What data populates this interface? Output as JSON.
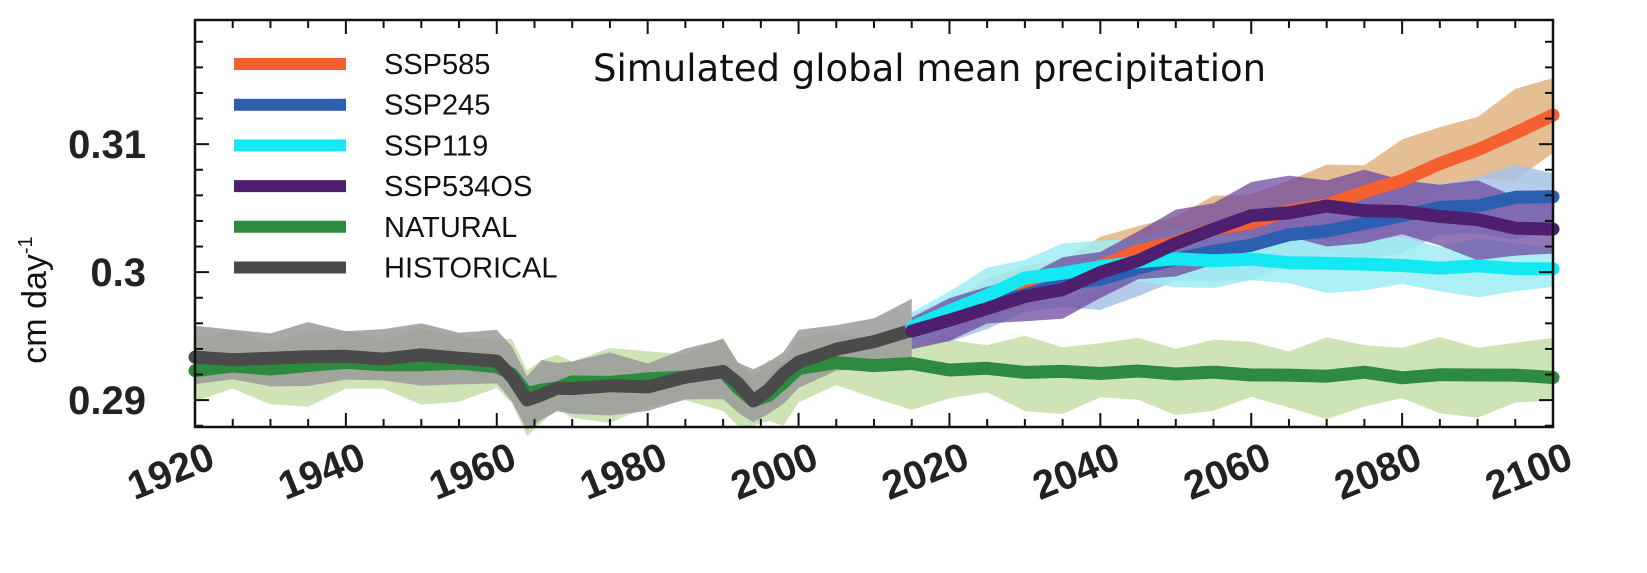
{
  "chart_data": {
    "type": "line",
    "title": "Simulated global mean precipitation",
    "ylabel": "cm day",
    "ylabel_superscript": "-1",
    "xlim": [
      1920,
      2100
    ],
    "ylim": [
      0.2879,
      0.3197
    ],
    "x_ticks": [
      1920,
      1940,
      1960,
      1980,
      2000,
      2020,
      2040,
      2060,
      2080,
      2100
    ],
    "x_tick_labels": [
      "1920",
      "1940",
      "1960",
      "1980",
      "2000",
      "2020",
      "2040",
      "2060",
      "2080",
      "2100"
    ],
    "y_ticks": [
      0.29,
      0.3,
      0.31
    ],
    "y_tick_labels": [
      "0.29",
      "0.3",
      "0.31"
    ],
    "grid": false,
    "legend_position": "top-left",
    "series": [
      {
        "name": "SSP585",
        "color": "#f4602f",
        "band_color": "#e2b380",
        "x": [
          2015,
          2020,
          2025,
          2030,
          2035,
          2040,
          2045,
          2050,
          2055,
          2060,
          2065,
          2070,
          2075,
          2080,
          2085,
          2090,
          2095,
          2100
        ],
        "y": [
          0.2955,
          0.2965,
          0.2978,
          0.2986,
          0.2995,
          0.3005,
          0.3016,
          0.3025,
          0.3032,
          0.304,
          0.3047,
          0.3053,
          0.3062,
          0.3073,
          0.3083,
          0.3097,
          0.3108,
          0.3123
        ],
        "spread": [
          0.0012,
          0.0015,
          0.0017,
          0.0018,
          0.0019,
          0.002,
          0.0021,
          0.0022,
          0.0023,
          0.0024,
          0.0025,
          0.0026,
          0.0026,
          0.0027,
          0.0027,
          0.0028,
          0.0028,
          0.0028
        ]
      },
      {
        "name": "SSP245",
        "color": "#2d5fb0",
        "band_color": "#a7c2e6",
        "x": [
          2015,
          2020,
          2025,
          2030,
          2035,
          2040,
          2045,
          2050,
          2055,
          2060,
          2065,
          2070,
          2075,
          2080,
          2085,
          2090,
          2095,
          2100
        ],
        "y": [
          0.2955,
          0.2963,
          0.2975,
          0.2983,
          0.299,
          0.2995,
          0.3003,
          0.301,
          0.3016,
          0.3022,
          0.3028,
          0.3033,
          0.3038,
          0.3044,
          0.305,
          0.3053,
          0.3057,
          0.306
        ],
        "spread": [
          0.0012,
          0.0015,
          0.0017,
          0.0018,
          0.0019,
          0.002,
          0.0021,
          0.0022,
          0.0023,
          0.0023,
          0.0024,
          0.0024,
          0.0025,
          0.0025,
          0.0025,
          0.0026,
          0.0026,
          0.0026
        ]
      },
      {
        "name": "SSP119",
        "color": "#14e8f2",
        "band_color": "#9eedf3",
        "x": [
          2015,
          2020,
          2025,
          2030,
          2035,
          2040,
          2045,
          2050,
          2055,
          2060,
          2065,
          2070,
          2075,
          2080,
          2085,
          2090,
          2095,
          2100
        ],
        "y": [
          0.2957,
          0.2969,
          0.2983,
          0.2994,
          0.3,
          0.3004,
          0.3008,
          0.301,
          0.301,
          0.3009,
          0.3008,
          0.3007,
          0.3006,
          0.3005,
          0.3004,
          0.3004,
          0.3003,
          0.3003
        ],
        "spread": [
          0.0012,
          0.0014,
          0.0016,
          0.0017,
          0.0018,
          0.0018,
          0.0019,
          0.0019,
          0.0019,
          0.0019,
          0.0019,
          0.0019,
          0.0019,
          0.0019,
          0.0019,
          0.0019,
          0.0019,
          0.0019
        ]
      },
      {
        "name": "SSP534OS",
        "color": "#4e1f6e",
        "band_color": "#6f4a9e",
        "x": [
          2015,
          2020,
          2025,
          2030,
          2035,
          2040,
          2045,
          2050,
          2055,
          2060,
          2065,
          2070,
          2075,
          2080,
          2085,
          2090,
          2095,
          2100
        ],
        "y": [
          0.2955,
          0.2962,
          0.2972,
          0.298,
          0.2988,
          0.2998,
          0.301,
          0.3022,
          0.3034,
          0.3043,
          0.3048,
          0.305,
          0.3049,
          0.3047,
          0.3044,
          0.304,
          0.3036,
          0.3032
        ],
        "spread": [
          0.0012,
          0.0015,
          0.0017,
          0.0018,
          0.0019,
          0.002,
          0.0021,
          0.0022,
          0.0023,
          0.0023,
          0.0024,
          0.0024,
          0.0024,
          0.0024,
          0.0024,
          0.0024,
          0.0024,
          0.0024
        ]
      },
      {
        "name": "NATURAL",
        "color": "#2c8b3f",
        "band_color": "#c5dfa9",
        "x": [
          1920,
          1925,
          1930,
          1935,
          1940,
          1945,
          1950,
          1955,
          1960,
          1962,
          1964,
          1966,
          1968,
          1970,
          1975,
          1980,
          1985,
          1990,
          1992,
          1994,
          1996,
          1998,
          2000,
          2005,
          2010,
          2015,
          2020,
          2025,
          2030,
          2035,
          2040,
          2045,
          2050,
          2055,
          2060,
          2065,
          2070,
          2075,
          2080,
          2085,
          2090,
          2095,
          2100
        ],
        "y": [
          0.2923,
          0.2926,
          0.2925,
          0.2927,
          0.2929,
          0.2928,
          0.2928,
          0.2928,
          0.2927,
          0.292,
          0.2905,
          0.2908,
          0.291,
          0.2913,
          0.2915,
          0.2916,
          0.2918,
          0.2922,
          0.291,
          0.2898,
          0.2905,
          0.2913,
          0.2925,
          0.2929,
          0.2928,
          0.2927,
          0.2925,
          0.2924,
          0.2922,
          0.2922,
          0.2922,
          0.2921,
          0.2922,
          0.2921,
          0.292,
          0.2919,
          0.292,
          0.292,
          0.2919,
          0.2919,
          0.292,
          0.2919,
          0.2919
        ],
        "spread": [
          0.0025,
          0.0025,
          0.0025,
          0.0025,
          0.0025,
          0.0025,
          0.0025,
          0.0025,
          0.0025,
          0.0025,
          0.0025,
          0.0025,
          0.0025,
          0.0025,
          0.0025,
          0.0025,
          0.0025,
          0.0025,
          0.0025,
          0.0025,
          0.0025,
          0.0025,
          0.0025,
          0.0026,
          0.0026,
          0.0026,
          0.0026,
          0.0026,
          0.0026,
          0.0026,
          0.0026,
          0.0026,
          0.0026,
          0.0026,
          0.0026,
          0.0026,
          0.0026,
          0.0026,
          0.0026,
          0.0026,
          0.0026,
          0.0026,
          0.0026
        ]
      },
      {
        "name": "HISTORICAL",
        "color": "#4a4a4a",
        "band_color": "#9a9a9a",
        "x": [
          1920,
          1925,
          1930,
          1935,
          1940,
          1945,
          1950,
          1955,
          1960,
          1962,
          1964,
          1966,
          1968,
          1970,
          1975,
          1980,
          1985,
          1990,
          1992,
          1994,
          1996,
          1998,
          2000,
          2005,
          2010,
          2015
        ],
        "y": [
          0.2932,
          0.2933,
          0.2932,
          0.2934,
          0.2934,
          0.2933,
          0.2934,
          0.2934,
          0.293,
          0.2918,
          0.29,
          0.2905,
          0.2908,
          0.291,
          0.2911,
          0.291,
          0.2918,
          0.2923,
          0.2912,
          0.29,
          0.2908,
          0.292,
          0.293,
          0.294,
          0.2945,
          0.2955
        ],
        "spread": [
          0.002,
          0.002,
          0.002,
          0.002,
          0.002,
          0.002,
          0.002,
          0.002,
          0.002,
          0.002,
          0.002,
          0.002,
          0.002,
          0.002,
          0.002,
          0.002,
          0.002,
          0.002,
          0.002,
          0.002,
          0.002,
          0.002,
          0.002,
          0.002,
          0.002,
          0.002
        ]
      }
    ]
  }
}
